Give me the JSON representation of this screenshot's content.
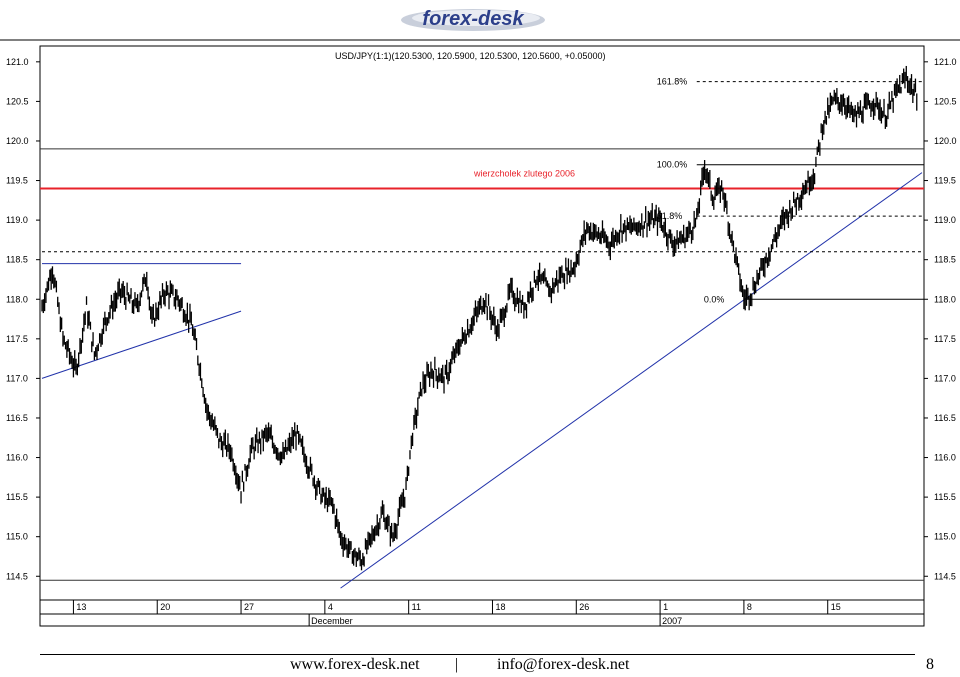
{
  "brand": {
    "logo_text": "forex-desk"
  },
  "footer": {
    "website": "www.forex-desk.net",
    "separator": "|",
    "email": "info@forex-desk.net",
    "page_number": "8"
  },
  "chart_data": {
    "type": "line",
    "title": "USD/JPY(1:1)(120.5300, 120.5900, 120.5300, 120.5600, +0.05000)",
    "ylim": [
      114.2,
      121.2
    ],
    "y_ticks": [
      "121.0",
      "120.5",
      "120.0",
      "119.5",
      "119.0",
      "118.5",
      "118.0",
      "117.5",
      "117.0",
      "116.5",
      "116.0",
      "115.5",
      "115.0",
      "114.5"
    ],
    "x_ticks": [
      {
        "label": "13",
        "index": 12
      },
      {
        "label": "20",
        "index": 44
      },
      {
        "label": "27",
        "index": 76
      },
      {
        "label": "4",
        "index": 108
      },
      {
        "label": "11",
        "index": 140
      },
      {
        "label": "18",
        "index": 172
      },
      {
        "label": "26",
        "index": 204
      },
      {
        "label": "1",
        "index": 236
      },
      {
        "label": "8",
        "index": 268
      },
      {
        "label": "15",
        "index": 300
      }
    ],
    "x_count": 336,
    "month_labels": [
      {
        "label": "December",
        "index": 102
      },
      {
        "label": "2007",
        "index": 236
      }
    ],
    "grid": false,
    "price_path": [
      [
        0,
        117.9
      ],
      [
        4,
        118.4
      ],
      [
        8,
        117.5
      ],
      [
        13,
        117.1
      ],
      [
        17,
        117.9
      ],
      [
        20,
        117.3
      ],
      [
        25,
        117.8
      ],
      [
        30,
        118.1
      ],
      [
        36,
        117.9
      ],
      [
        40,
        118.3
      ],
      [
        42,
        117.7
      ],
      [
        47,
        118.1
      ],
      [
        52,
        118.0
      ],
      [
        57,
        117.7
      ],
      [
        60,
        117.2
      ],
      [
        63,
        116.6
      ],
      [
        68,
        116.2
      ],
      [
        72,
        116.1
      ],
      [
        76,
        115.6
      ],
      [
        80,
        116.1
      ],
      [
        86,
        116.3
      ],
      [
        92,
        116.0
      ],
      [
        97,
        116.3
      ],
      [
        103,
        115.8
      ],
      [
        107,
        115.5
      ],
      [
        111,
        115.4
      ],
      [
        114,
        115.0
      ],
      [
        118,
        114.8
      ],
      [
        122,
        114.7
      ],
      [
        126,
        115.0
      ],
      [
        130,
        115.3
      ],
      [
        134,
        115.0
      ],
      [
        139,
        115.6
      ],
      [
        141,
        116.2
      ],
      [
        145,
        116.9
      ],
      [
        149,
        117.1
      ],
      [
        154,
        117.0
      ],
      [
        159,
        117.4
      ],
      [
        164,
        117.7
      ],
      [
        169,
        118.0
      ],
      [
        174,
        117.6
      ],
      [
        179,
        118.1
      ],
      [
        184,
        117.9
      ],
      [
        189,
        118.3
      ],
      [
        194,
        118.1
      ],
      [
        198,
        118.3
      ],
      [
        203,
        118.4
      ],
      [
        208,
        118.9
      ],
      [
        213,
        118.8
      ],
      [
        217,
        118.7
      ],
      [
        221,
        118.9
      ],
      [
        226,
        118.9
      ],
      [
        231,
        119.0
      ],
      [
        236,
        119.0
      ],
      [
        241,
        118.7
      ],
      [
        246,
        118.8
      ],
      [
        250,
        119.0
      ],
      [
        253,
        119.7
      ],
      [
        256,
        119.3
      ],
      [
        260,
        119.4
      ],
      [
        262,
        119.0
      ],
      [
        265,
        118.5
      ],
      [
        268,
        118.0
      ],
      [
        271,
        118.1
      ],
      [
        275,
        118.4
      ],
      [
        279,
        118.7
      ],
      [
        283,
        119.0
      ],
      [
        287,
        119.2
      ],
      [
        291,
        119.4
      ],
      [
        295,
        119.6
      ],
      [
        298,
        120.2
      ],
      [
        302,
        120.5
      ],
      [
        306,
        120.5
      ],
      [
        310,
        120.3
      ],
      [
        314,
        120.4
      ],
      [
        318,
        120.5
      ],
      [
        322,
        120.3
      ],
      [
        326,
        120.6
      ],
      [
        330,
        120.8
      ],
      [
        334,
        120.56
      ]
    ],
    "lines": [
      {
        "type": "horizontal",
        "y": 119.4,
        "color": "#e8222a",
        "label": "wierzcholek zlutego 2006"
      },
      {
        "type": "horizontal",
        "y": 119.9,
        "color": "#333333"
      },
      {
        "type": "horizontal",
        "y": 114.45,
        "color": "#333333"
      },
      {
        "type": "segment",
        "x1": 0,
        "y1": 118.45,
        "x2": 76,
        "y2": 118.45,
        "color": "#2233aa"
      },
      {
        "type": "segment",
        "x1": 0,
        "y1": 117.0,
        "x2": 76,
        "y2": 117.85,
        "color": "#2233aa"
      },
      {
        "type": "segment",
        "x1": 114,
        "y1": 114.35,
        "x2": 336,
        "y2": 119.6,
        "color": "#2233aa"
      }
    ],
    "fib_levels": [
      {
        "label": "161.8%",
        "y": 120.75,
        "x_start": 250
      },
      {
        "label": "100.0%",
        "y": 119.7,
        "x_start": 250
      },
      {
        "label": "61.8%",
        "y": 119.05,
        "x_start": 250
      },
      {
        "label": "0.0%",
        "y": 118.0,
        "x_start": 268
      }
    ],
    "dashed_extra": [
      {
        "y": 118.6,
        "x_start": 0
      }
    ]
  }
}
